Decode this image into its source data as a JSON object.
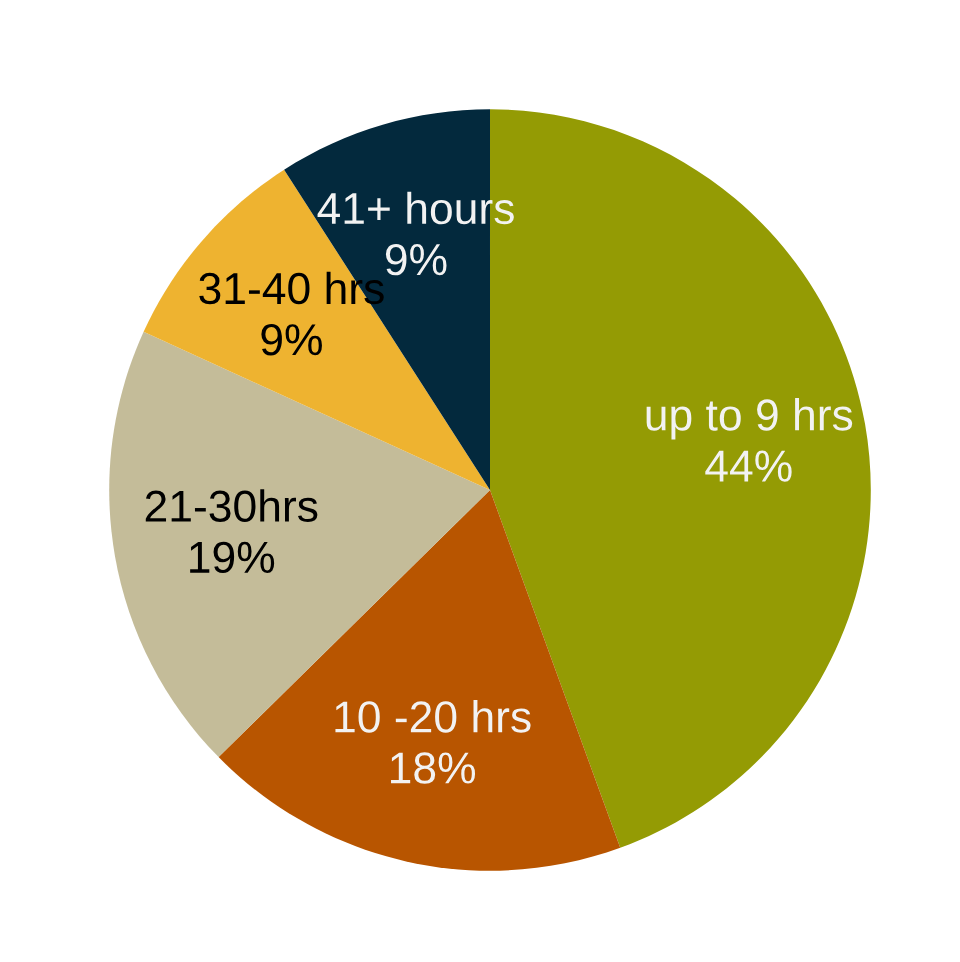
{
  "chart_data": {
    "type": "pie",
    "categories": [
      "up to 9 hrs",
      "10 -20 hrs",
      "21-30hrs",
      "31-40 hrs",
      "41+ hours"
    ],
    "values": [
      44,
      18,
      19,
      9,
      9
    ],
    "colors": [
      "#949b04",
      "#b85500",
      "#c4bc99",
      "#eeb330",
      "#03293d"
    ],
    "value_labels": [
      "44%",
      "18%",
      "19%",
      "9%",
      "9%"
    ]
  }
}
